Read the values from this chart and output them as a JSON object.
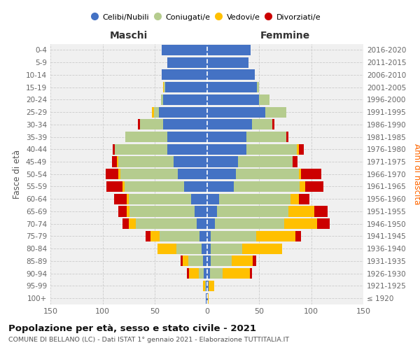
{
  "age_groups": [
    "100+",
    "95-99",
    "90-94",
    "85-89",
    "80-84",
    "75-79",
    "70-74",
    "65-69",
    "60-64",
    "55-59",
    "50-54",
    "45-49",
    "40-44",
    "35-39",
    "30-34",
    "25-29",
    "20-24",
    "15-19",
    "10-14",
    "5-9",
    "0-4"
  ],
  "birth_years": [
    "≤ 1920",
    "1921-1925",
    "1926-1930",
    "1931-1935",
    "1936-1940",
    "1941-1945",
    "1946-1950",
    "1951-1955",
    "1956-1960",
    "1961-1965",
    "1966-1970",
    "1971-1975",
    "1976-1980",
    "1981-1985",
    "1986-1990",
    "1991-1995",
    "1996-2000",
    "2001-2005",
    "2006-2010",
    "2011-2015",
    "2016-2020"
  ],
  "colors": {
    "celibi": "#4472c4",
    "coniugati": "#b5cc8e",
    "vedovi": "#ffc000",
    "divorziati": "#cc0000"
  },
  "maschi": {
    "celibi": [
      1,
      1,
      3,
      4,
      5,
      7,
      10,
      12,
      15,
      22,
      28,
      32,
      38,
      38,
      42,
      46,
      42,
      40,
      43,
      38,
      43
    ],
    "coniugati": [
      0,
      1,
      5,
      14,
      24,
      38,
      58,
      62,
      60,
      57,
      55,
      53,
      50,
      40,
      22,
      5,
      2,
      1,
      0,
      0,
      0
    ],
    "vedovi": [
      0,
      2,
      9,
      5,
      18,
      9,
      7,
      3,
      2,
      2,
      2,
      1,
      0,
      0,
      0,
      2,
      0,
      1,
      0,
      0,
      0
    ],
    "divorziati": [
      0,
      0,
      2,
      2,
      0,
      5,
      6,
      8,
      12,
      15,
      12,
      5,
      2,
      0,
      2,
      0,
      0,
      0,
      0,
      0,
      0
    ]
  },
  "femmine": {
    "celibi": [
      1,
      2,
      3,
      4,
      4,
      4,
      8,
      10,
      12,
      26,
      28,
      30,
      38,
      38,
      43,
      56,
      50,
      48,
      46,
      40,
      42
    ],
    "coniugati": [
      0,
      0,
      12,
      20,
      30,
      43,
      66,
      68,
      68,
      63,
      60,
      52,
      48,
      38,
      20,
      20,
      10,
      2,
      0,
      0,
      0
    ],
    "vedovi": [
      1,
      5,
      26,
      20,
      38,
      38,
      32,
      25,
      8,
      5,
      2,
      0,
      2,
      0,
      0,
      0,
      0,
      0,
      0,
      0,
      0
    ],
    "divorziati": [
      0,
      0,
      2,
      3,
      0,
      5,
      12,
      13,
      10,
      18,
      20,
      5,
      5,
      2,
      2,
      0,
      0,
      0,
      0,
      0,
      0
    ]
  },
  "xlim": 150,
  "title": "Popolazione per età, sesso e stato civile - 2021",
  "subtitle": "COMUNE DI BELLANO (LC) - Dati ISTAT 1° gennaio 2021 - Elaborazione TUTTITALIA.IT",
  "xlabel_left": "Maschi",
  "xlabel_right": "Femmine",
  "ylabel_left": "Fasce di età",
  "ylabel_right": "Anni di nascita",
  "legend_labels": [
    "Celibi/Nubili",
    "Coniugati/e",
    "Vedovi/e",
    "Divorziati/e"
  ],
  "bg_color": "#ffffff",
  "grid_color": "#cccccc",
  "bar_height": 0.85
}
